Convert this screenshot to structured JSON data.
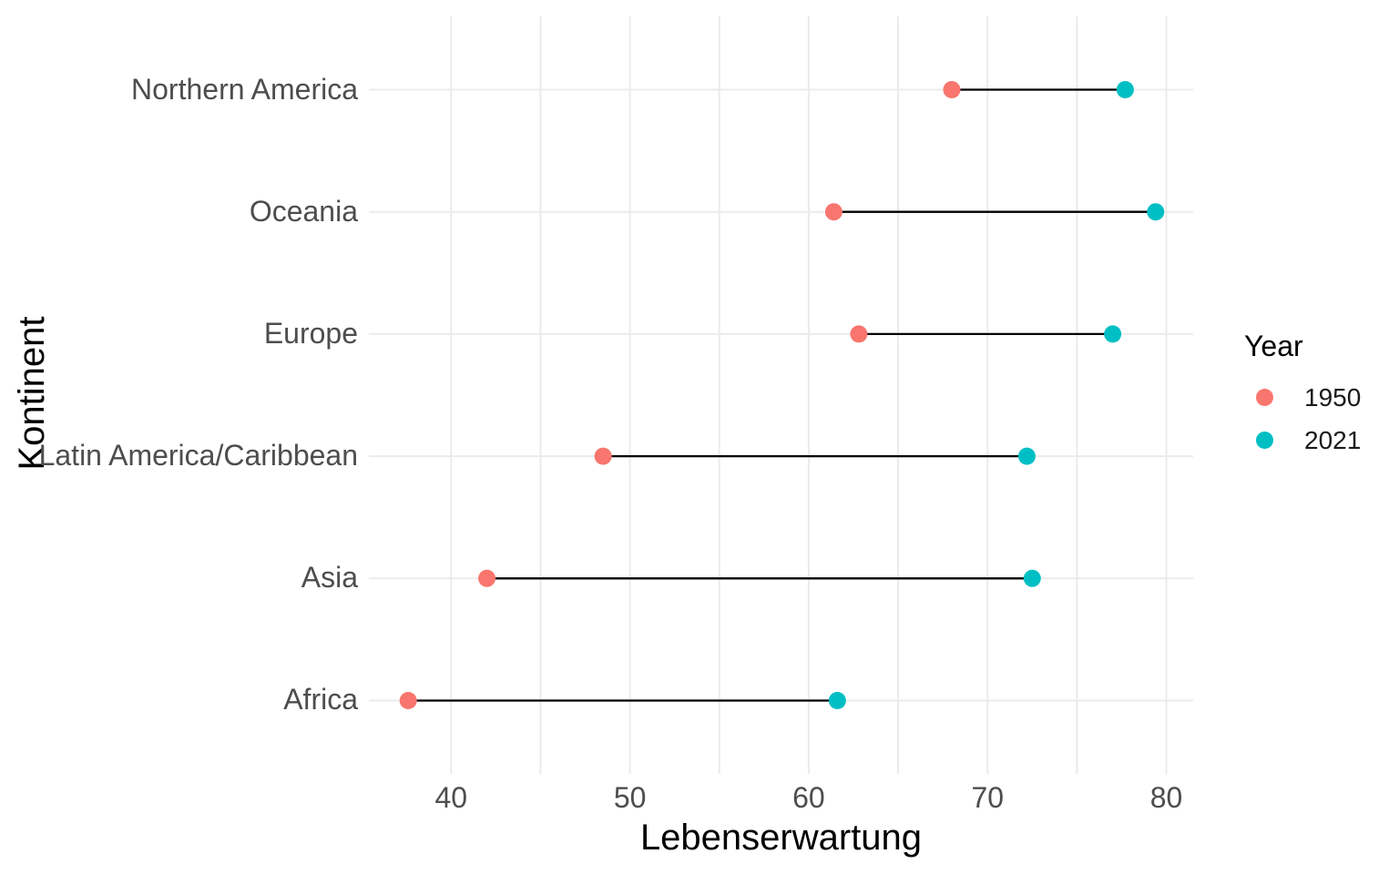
{
  "figure": {
    "background": "#FFFFFF"
  },
  "chart_data": {
    "type": "dumbbell",
    "orientation": "horizontal",
    "title": "",
    "xlabel": "Lebenserwartung",
    "ylabel": "Kontinent",
    "categories": [
      "Northern America",
      "Oceania",
      "Europe",
      "Latin America/Caribbean",
      "Asia",
      "Africa"
    ],
    "series": [
      {
        "name": "1950",
        "color": "#F8766D",
        "values": [
          68.0,
          61.4,
          62.8,
          48.5,
          42.0,
          37.6
        ]
      },
      {
        "name": "2021",
        "color": "#00BFC4",
        "values": [
          77.7,
          79.4,
          77.0,
          72.2,
          72.5,
          61.6
        ]
      }
    ],
    "xlim": [
      35.4,
      81.5
    ],
    "xticks_labeled": [
      40,
      50,
      60,
      70,
      80
    ],
    "x_gridlines": [
      40,
      45,
      50,
      55,
      60,
      65,
      70,
      75,
      80
    ],
    "grid": true,
    "gridline_color": "#EBEBEB",
    "connector_color": "#000000",
    "point_radius": 9.5,
    "legend_title": "Year",
    "legend_position": "right",
    "tick_text_color": "#4D4D4D",
    "title_text_color": "#000000"
  }
}
